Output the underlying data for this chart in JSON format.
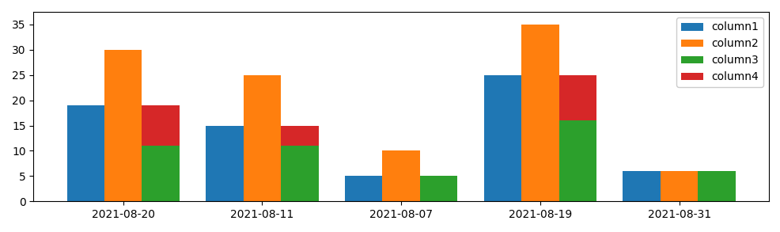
{
  "categories": [
    "2021-08-20",
    "2021-08-11",
    "2021-08-07",
    "2021-08-19",
    "2021-08-31"
  ],
  "column1": [
    19,
    15,
    5,
    25,
    6
  ],
  "column2": [
    30,
    25,
    10,
    35,
    6
  ],
  "column3": [
    11,
    11,
    5,
    16,
    6
  ],
  "column4": [
    8,
    4,
    0,
    9,
    0
  ],
  "colors": {
    "column1": "#1f77b4",
    "column2": "#ff7f0e",
    "column3": "#2ca02c",
    "column4": "#d62728"
  },
  "ylim": [
    0,
    37.5
  ],
  "yticks": [
    0,
    5,
    10,
    15,
    20,
    25,
    30,
    35
  ],
  "bar_width": 0.27,
  "figsize": [
    9.87,
    2.93
  ],
  "dpi": 100
}
